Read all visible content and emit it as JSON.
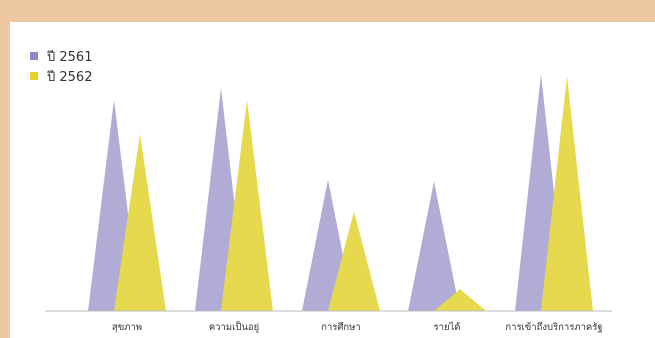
{
  "chart_data": {
    "type": "bar",
    "categories": [
      "สุขภาพ",
      "ความเป็นอยู่",
      "การศึกษา",
      "รายได้",
      "การเข้าถึงบริการภาครัฐ"
    ],
    "series": [
      {
        "name": "ปี 2561",
        "color": "#b0acd5",
        "values": [
          212,
          224,
          132,
          130,
          238
        ]
      },
      {
        "name": "ปี 2562",
        "color": "#e6d94e",
        "values": [
          178,
          212,
          100,
          22,
          236
        ]
      }
    ],
    "ylim": [
      0,
      240
    ],
    "legend": "top-left",
    "grid": false
  }
}
